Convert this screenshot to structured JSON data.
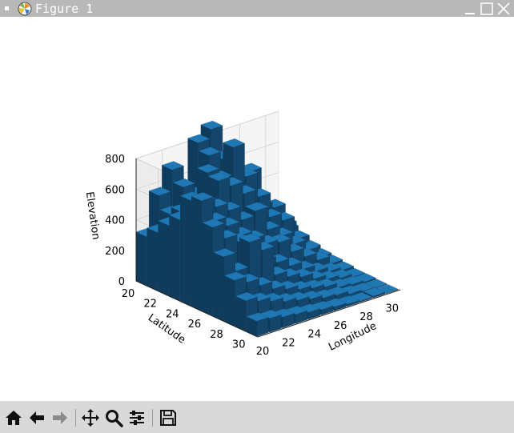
{
  "window": {
    "title": "Figure 1"
  },
  "toolbar": {
    "tools": [
      {
        "name": "home-icon"
      },
      {
        "name": "back-icon"
      },
      {
        "name": "forward-icon"
      },
      {
        "name": "pan-icon"
      },
      {
        "name": "zoom-icon"
      },
      {
        "name": "configure-subplots-icon"
      },
      {
        "name": "save-icon"
      }
    ]
  },
  "chart_data": {
    "type": "bar3d",
    "xlabel": "Longitude",
    "ylabel": "Latitude",
    "zlabel": "Elevation",
    "x_ticks": [
      "20",
      "22",
      "24",
      "26",
      "28",
      "30"
    ],
    "y_ticks": [
      "20",
      "22",
      "24",
      "26",
      "28",
      "30"
    ],
    "z_ticks": [
      "0",
      "200",
      "400",
      "600",
      "800"
    ],
    "xlim": [
      20,
      31
    ],
    "ylim": [
      20,
      31
    ],
    "zlim": [
      0,
      800
    ],
    "bar_color": "#1f77b4",
    "grid": true,
    "longitude": [
      20,
      21,
      22,
      23,
      24,
      25,
      26,
      27,
      28,
      29,
      30
    ],
    "latitude": [
      20,
      21,
      22,
      23,
      24,
      25,
      26,
      27,
      28,
      29,
      30
    ],
    "elevation": [
      [
        320,
        560,
        700,
        380,
        820,
        880,
        300,
        430,
        520,
        250,
        160
      ],
      [
        380,
        470,
        620,
        540,
        770,
        720,
        500,
        380,
        330,
        290,
        120
      ],
      [
        460,
        520,
        500,
        720,
        650,
        830,
        610,
        450,
        280,
        210,
        90
      ],
      [
        530,
        610,
        580,
        700,
        640,
        560,
        420,
        350,
        300,
        150,
        60
      ],
      [
        690,
        650,
        590,
        540,
        450,
        480,
        330,
        260,
        180,
        110,
        40
      ],
      [
        720,
        560,
        500,
        410,
        360,
        300,
        280,
        190,
        130,
        80,
        30
      ],
      [
        580,
        480,
        430,
        300,
        250,
        210,
        160,
        110,
        70,
        40,
        20
      ],
      [
        420,
        300,
        460,
        380,
        190,
        150,
        120,
        80,
        50,
        30,
        10
      ],
      [
        300,
        260,
        210,
        160,
        130,
        100,
        80,
        60,
        30,
        20,
        10
      ],
      [
        200,
        170,
        140,
        110,
        90,
        70,
        50,
        40,
        20,
        10,
        5
      ],
      [
        100,
        90,
        70,
        60,
        45,
        35,
        25,
        15,
        8,
        12,
        3
      ]
    ]
  }
}
